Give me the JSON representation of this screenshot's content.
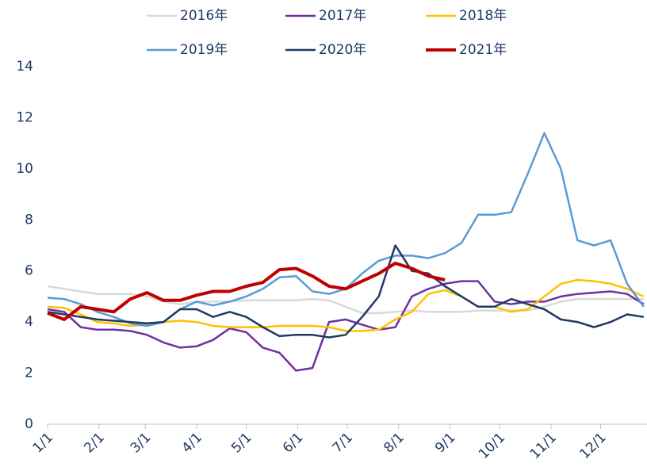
{
  "chart_data": {
    "type": "line",
    "x": [
      0,
      10,
      20,
      30,
      40,
      50,
      60,
      70,
      80,
      90,
      100,
      110,
      120,
      130,
      140,
      150,
      160,
      170,
      180,
      190,
      200,
      210,
      220,
      230,
      240,
      250,
      260,
      270,
      280,
      290,
      300,
      310,
      320,
      330,
      340,
      350,
      360
    ],
    "xlim": [
      0,
      362
    ],
    "xticks": [
      {
        "value": 0,
        "label": "1/1"
      },
      {
        "value": 31,
        "label": "2/1"
      },
      {
        "value": 59,
        "label": "3/1"
      },
      {
        "value": 90,
        "label": "4/1"
      },
      {
        "value": 120,
        "label": "5/1"
      },
      {
        "value": 151,
        "label": "6/1"
      },
      {
        "value": 181,
        "label": "7/1"
      },
      {
        "value": 212,
        "label": "8/1"
      },
      {
        "value": 243,
        "label": "9/1"
      },
      {
        "value": 273,
        "label": "10/1"
      },
      {
        "value": 304,
        "label": "11/1"
      },
      {
        "value": 334,
        "label": "12/1"
      }
    ],
    "ylim": [
      0,
      14
    ],
    "yticks": [
      0,
      2,
      4,
      6,
      8,
      10,
      12,
      14
    ],
    "series": [
      {
        "name": "2016年",
        "color": "#d9d9d9",
        "values": [
          5.4,
          5.3,
          5.2,
          5.1,
          5.1,
          5.1,
          5.0,
          4.8,
          4.7,
          4.8,
          4.8,
          4.8,
          4.85,
          4.85,
          4.85,
          4.85,
          4.9,
          4.85,
          4.6,
          4.35,
          4.35,
          4.4,
          4.45,
          4.4,
          4.4,
          4.4,
          4.45,
          4.45,
          4.45,
          4.45,
          4.6,
          4.8,
          4.9,
          4.9,
          4.9,
          4.9,
          4.9
        ]
      },
      {
        "name": "2017年",
        "color": "#7030a0",
        "values": [
          4.5,
          4.4,
          3.8,
          3.7,
          3.7,
          3.65,
          3.5,
          3.2,
          3.0,
          3.05,
          3.3,
          3.75,
          3.6,
          3.0,
          2.8,
          2.1,
          2.2,
          4.0,
          4.1,
          3.9,
          3.7,
          3.8,
          5.0,
          5.3,
          5.5,
          5.6,
          5.6,
          4.8,
          4.7,
          4.8,
          4.8,
          5.0,
          5.1,
          5.15,
          5.2,
          5.1,
          4.7
        ]
      },
      {
        "name": "2018年",
        "color": "#ffc000",
        "values": [
          4.6,
          4.55,
          4.3,
          4.0,
          3.95,
          3.85,
          3.9,
          4.0,
          4.05,
          4.0,
          3.85,
          3.8,
          3.8,
          3.8,
          3.85,
          3.85,
          3.85,
          3.8,
          3.65,
          3.65,
          3.7,
          4.1,
          4.4,
          5.1,
          5.25,
          5.0,
          4.6,
          4.6,
          4.4,
          4.5,
          5.0,
          5.5,
          5.65,
          5.6,
          5.5,
          5.3,
          5.0
        ]
      },
      {
        "name": "2019年",
        "color": "#5b9bd5",
        "values": [
          4.95,
          4.9,
          4.7,
          4.4,
          4.2,
          3.95,
          3.85,
          4.0,
          4.5,
          4.8,
          4.65,
          4.8,
          5.0,
          5.3,
          5.75,
          5.8,
          5.2,
          5.1,
          5.3,
          5.9,
          6.4,
          6.6,
          6.6,
          6.5,
          6.7,
          7.1,
          8.2,
          8.2,
          8.3,
          9.8,
          11.4,
          10.0,
          7.2,
          7.0,
          7.2,
          5.5,
          4.6
        ]
      },
      {
        "name": "2020年",
        "color": "#203864",
        "values": [
          4.4,
          4.3,
          4.2,
          4.1,
          4.05,
          4.0,
          3.95,
          4.0,
          4.5,
          4.5,
          4.2,
          4.4,
          4.2,
          3.8,
          3.45,
          3.5,
          3.5,
          3.4,
          3.5,
          4.2,
          5.0,
          7.0,
          6.0,
          5.9,
          5.4,
          5.0,
          4.6,
          4.6,
          4.9,
          4.7,
          4.5,
          4.1,
          4.0,
          3.8,
          4.0,
          4.3,
          4.2
        ]
      },
      {
        "name": "2021年",
        "color": "#c00000",
        "values": [
          4.35,
          4.1,
          4.6,
          4.5,
          4.4,
          4.9,
          5.15,
          4.85,
          4.85,
          5.05,
          5.2,
          5.2,
          5.4,
          5.55,
          6.05,
          6.1,
          5.8,
          5.4,
          5.3,
          5.6,
          5.9,
          6.3,
          6.1,
          5.8,
          5.65,
          null,
          null,
          null,
          null,
          null,
          null,
          null,
          null,
          null,
          null,
          null,
          null
        ]
      }
    ]
  }
}
